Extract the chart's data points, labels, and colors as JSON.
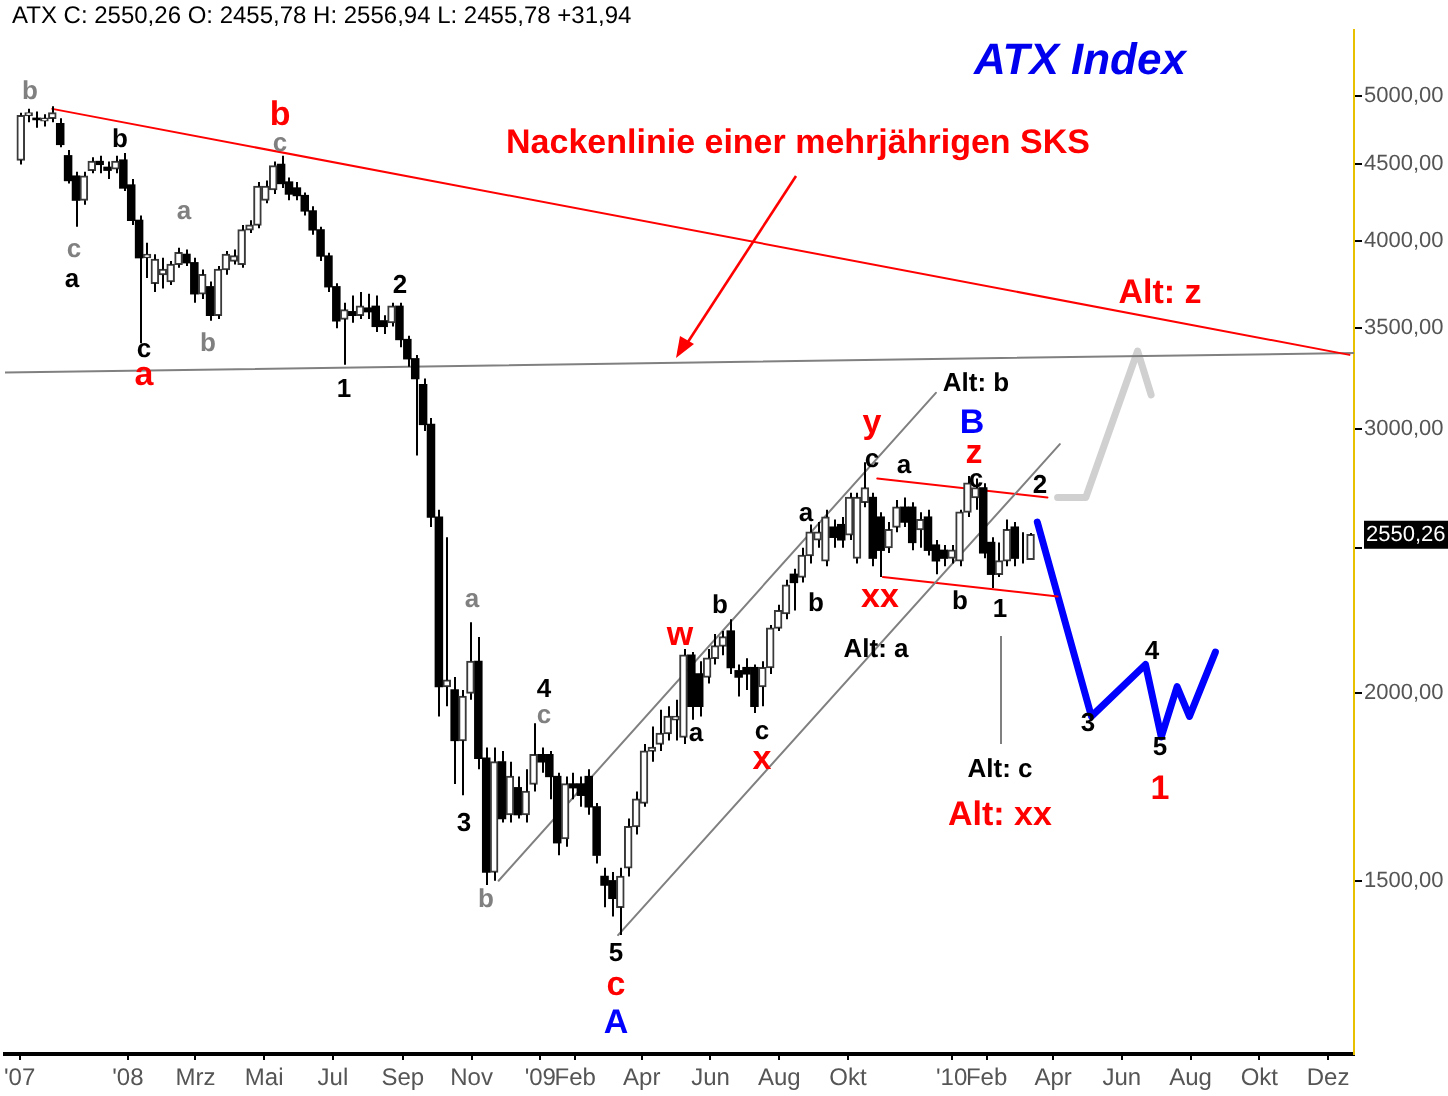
{
  "chart_data": {
    "type": "candlestick",
    "title": "ATX Index",
    "subtitle": "ATX C: 2550,26 O: 2455,78 H: 2556,94 L: 2455,78 +31,94",
    "x": [
      "2007-09-28",
      "2007-10-05",
      "2007-10-12",
      "2007-10-19",
      "2007-10-26",
      "2007-11-02",
      "2007-11-09",
      "2007-11-16",
      "2007-11-23",
      "2007-11-30",
      "2007-12-07",
      "2007-12-14",
      "2007-12-21",
      "2007-12-28",
      "2008-01-04",
      "2008-01-11",
      "2008-01-18",
      "2008-01-25",
      "2008-02-01",
      "2008-02-08",
      "2008-02-15",
      "2008-02-22",
      "2008-02-29",
      "2008-03-07",
      "2008-03-14",
      "2008-03-21",
      "2008-03-28",
      "2008-04-04",
      "2008-04-11",
      "2008-04-18",
      "2008-04-25",
      "2008-05-02",
      "2008-05-09",
      "2008-05-16",
      "2008-05-23",
      "2008-05-30",
      "2008-06-06",
      "2008-06-13",
      "2008-06-20",
      "2008-06-27",
      "2008-07-04",
      "2008-07-11",
      "2008-07-18",
      "2008-07-25",
      "2008-08-01",
      "2008-08-08",
      "2008-08-15",
      "2008-08-22",
      "2008-08-29",
      "2008-09-05",
      "2008-09-12",
      "2008-09-19",
      "2008-09-26",
      "2008-10-03",
      "2008-10-10",
      "2008-10-17",
      "2008-10-24",
      "2008-10-31",
      "2008-11-07",
      "2008-11-14",
      "2008-11-21",
      "2008-11-28",
      "2008-12-05",
      "2008-12-12",
      "2008-12-19",
      "2008-12-26",
      "2009-01-02",
      "2009-01-09",
      "2009-01-16",
      "2009-01-23",
      "2009-01-30",
      "2009-02-06",
      "2009-02-13",
      "2009-02-20",
      "2009-02-27",
      "2009-03-06",
      "2009-03-13",
      "2009-03-20",
      "2009-03-27",
      "2009-04-03",
      "2009-04-10",
      "2009-04-17",
      "2009-04-24",
      "2009-05-01",
      "2009-05-08",
      "2009-05-15",
      "2009-05-22",
      "2009-05-29",
      "2009-06-05",
      "2009-06-12",
      "2009-06-19",
      "2009-06-26",
      "2009-07-03",
      "2009-07-10",
      "2009-07-17",
      "2009-07-24",
      "2009-07-31",
      "2009-08-07",
      "2009-08-14",
      "2009-08-21",
      "2009-08-28",
      "2009-09-04",
      "2009-09-11",
      "2009-09-18",
      "2009-09-25",
      "2009-10-02",
      "2009-10-09",
      "2009-10-16",
      "2009-10-23",
      "2009-10-30",
      "2009-11-06",
      "2009-11-13",
      "2009-11-20",
      "2009-11-27",
      "2009-12-04",
      "2009-12-11",
      "2009-12-18",
      "2009-12-25",
      "2010-01-01",
      "2010-01-08",
      "2010-01-15",
      "2010-01-22",
      "2010-01-29",
      "2010-02-05",
      "2010-02-12",
      "2010-02-19",
      "2010-02-26",
      "2010-03-05",
      "2010-03-12"
    ],
    "ohlc": [
      [
        4530,
        4870,
        4500,
        4850
      ],
      [
        4850,
        4900,
        4800,
        4870
      ],
      [
        4830,
        4880,
        4760,
        4820
      ],
      [
        4810,
        4860,
        4770,
        4830
      ],
      [
        4830,
        4920,
        4800,
        4870
      ],
      [
        4790,
        4830,
        4620,
        4640
      ],
      [
        4560,
        4600,
        4370,
        4390
      ],
      [
        4420,
        4450,
        4090,
        4260
      ],
      [
        4260,
        4450,
        4230,
        4420
      ],
      [
        4460,
        4550,
        4440,
        4520
      ],
      [
        4520,
        4560,
        4440,
        4500
      ],
      [
        4480,
        4520,
        4400,
        4460
      ],
      [
        4470,
        4560,
        4440,
        4520
      ],
      [
        4530,
        4580,
        4320,
        4340
      ],
      [
        4360,
        4400,
        4100,
        4130
      ],
      [
        4130,
        4160,
        3420,
        3900
      ],
      [
        3900,
        3990,
        3780,
        3920
      ],
      [
        3750,
        3920,
        3700,
        3890
      ],
      [
        3800,
        3900,
        3720,
        3830
      ],
      [
        3760,
        3880,
        3740,
        3860
      ],
      [
        3860,
        3960,
        3840,
        3930
      ],
      [
        3920,
        3950,
        3850,
        3870
      ],
      [
        3870,
        3900,
        3640,
        3690
      ],
      [
        3690,
        3830,
        3660,
        3800
      ],
      [
        3730,
        3760,
        3540,
        3570
      ],
      [
        3570,
        3850,
        3550,
        3830
      ],
      [
        3830,
        3940,
        3800,
        3920
      ],
      [
        3880,
        3950,
        3860,
        3910
      ],
      [
        3860,
        4100,
        3840,
        4070
      ],
      [
        4070,
        4130,
        4050,
        4100
      ],
      [
        4100,
        4380,
        4080,
        4350
      ],
      [
        4260,
        4390,
        4240,
        4350
      ],
      [
        4330,
        4520,
        4300,
        4490
      ],
      [
        4500,
        4560,
        4340,
        4370
      ],
      [
        4380,
        4410,
        4260,
        4300
      ],
      [
        4340,
        4380,
        4260,
        4290
      ],
      [
        4290,
        4310,
        4160,
        4190
      ],
      [
        4190,
        4220,
        4040,
        4070
      ],
      [
        4070,
        4090,
        3880,
        3910
      ],
      [
        3910,
        3930,
        3700,
        3730
      ],
      [
        3730,
        3750,
        3500,
        3540
      ],
      [
        3550,
        3640,
        3310,
        3600
      ],
      [
        3590,
        3680,
        3530,
        3570
      ],
      [
        3570,
        3700,
        3550,
        3620
      ],
      [
        3610,
        3690,
        3550,
        3590
      ],
      [
        3620,
        3680,
        3480,
        3510
      ],
      [
        3540,
        3570,
        3470,
        3510
      ],
      [
        3530,
        3640,
        3510,
        3620
      ],
      [
        3620,
        3640,
        3400,
        3440
      ],
      [
        3440,
        3460,
        3300,
        3340
      ],
      [
        3340,
        3360,
        2880,
        3240
      ],
      [
        3210,
        3240,
        2990,
        3020
      ],
      [
        3020,
        3050,
        2580,
        2620
      ],
      [
        2620,
        2650,
        1930,
        2020
      ],
      [
        2020,
        2540,
        1960,
        2040
      ],
      [
        2010,
        2050,
        1740,
        1860
      ],
      [
        1860,
        2010,
        1710,
        1990
      ],
      [
        2000,
        2230,
        1980,
        2100
      ],
      [
        2100,
        2180,
        1780,
        1810
      ],
      [
        1810,
        1840,
        1490,
        1520
      ],
      [
        1520,
        1840,
        1500,
        1800
      ],
      [
        1800,
        1830,
        1640,
        1650
      ],
      [
        1660,
        1800,
        1640,
        1760
      ],
      [
        1730,
        1760,
        1650,
        1660
      ],
      [
        1660,
        1780,
        1640,
        1720
      ],
      [
        1740,
        1910,
        1720,
        1820
      ],
      [
        1820,
        1840,
        1770,
        1800
      ],
      [
        1820,
        1830,
        1700,
        1760
      ],
      [
        1760,
        1770,
        1560,
        1590
      ],
      [
        1600,
        1760,
        1580,
        1740
      ],
      [
        1740,
        1770,
        1700,
        1730
      ],
      [
        1740,
        1760,
        1680,
        1710
      ],
      [
        1760,
        1780,
        1660,
        1680
      ],
      [
        1680,
        1690,
        1540,
        1560
      ],
      [
        1510,
        1530,
        1440,
        1490
      ],
      [
        1500,
        1520,
        1420,
        1460
      ],
      [
        1440,
        1530,
        1380,
        1510
      ],
      [
        1530,
        1650,
        1510,
        1630
      ],
      [
        1630,
        1720,
        1610,
        1700
      ],
      [
        1690,
        1850,
        1680,
        1830
      ],
      [
        1830,
        1900,
        1800,
        1840
      ],
      [
        1850,
        1950,
        1830,
        1880
      ],
      [
        1880,
        1960,
        1860,
        1930
      ],
      [
        1920,
        1980,
        1860,
        1930
      ],
      [
        1870,
        2140,
        1850,
        2120
      ],
      [
        2120,
        2130,
        1920,
        1960
      ],
      [
        2060,
        2100,
        1930,
        1960
      ],
      [
        2050,
        2140,
        2030,
        2110
      ],
      [
        2110,
        2190,
        2090,
        2150
      ],
      [
        2150,
        2200,
        2120,
        2180
      ],
      [
        2200,
        2240,
        2060,
        2080
      ],
      [
        2070,
        2090,
        1990,
        2050
      ],
      [
        2080,
        2110,
        2010,
        2060
      ],
      [
        2080,
        2090,
        1940,
        1960
      ],
      [
        2020,
        2100,
        1960,
        2080
      ],
      [
        2080,
        2220,
        2060,
        2210
      ],
      [
        2210,
        2290,
        2200,
        2270
      ],
      [
        2260,
        2380,
        2240,
        2360
      ],
      [
        2400,
        2420,
        2270,
        2370
      ],
      [
        2390,
        2500,
        2370,
        2470
      ],
      [
        2470,
        2590,
        2440,
        2560
      ],
      [
        2530,
        2600,
        2500,
        2560
      ],
      [
        2450,
        2650,
        2430,
        2620
      ],
      [
        2580,
        2610,
        2500,
        2540
      ],
      [
        2590,
        2620,
        2500,
        2530
      ],
      [
        2550,
        2720,
        2530,
        2700
      ],
      [
        2460,
        2720,
        2440,
        2700
      ],
      [
        2680,
        2850,
        2660,
        2740
      ],
      [
        2700,
        2720,
        2430,
        2460
      ],
      [
        2620,
        2640,
        2390,
        2490
      ],
      [
        2500,
        2600,
        2480,
        2570
      ],
      [
        2580,
        2690,
        2560,
        2660
      ],
      [
        2660,
        2700,
        2580,
        2600
      ],
      [
        2660,
        2680,
        2490,
        2520
      ],
      [
        2570,
        2640,
        2500,
        2610
      ],
      [
        2620,
        2650,
        2470,
        2490
      ],
      [
        2510,
        2530,
        2400,
        2450
      ],
      [
        2490,
        2510,
        2430,
        2460
      ],
      [
        2460,
        2510,
        2440,
        2490
      ],
      [
        2450,
        2650,
        2430,
        2640
      ],
      [
        2640,
        2790,
        2620,
        2760
      ],
      [
        2700,
        2780,
        2650,
        2740
      ],
      [
        2740,
        2760,
        2460,
        2480
      ],
      [
        2520,
        2540,
        2350,
        2400
      ],
      [
        2400,
        2520,
        2390,
        2450
      ],
      [
        2450,
        2610,
        2430,
        2570
      ],
      [
        2580,
        2600,
        2430,
        2460
      ],
      [
        2470,
        2560,
        2440,
        2470
      ],
      [
        2455.78,
        2556.94,
        2455.78,
        2550.26
      ]
    ],
    "series": [
      {
        "type": "line",
        "color": "#ff0000",
        "x": [
          "2007-10-26",
          "2010-12-20"
        ],
        "values": [
          4900,
          3360
        ]
      },
      {
        "type": "line",
        "color": "#808080",
        "x": [
          "2007-09-14",
          "2010-12-24"
        ],
        "values": [
          3270,
          3370
        ]
      },
      {
        "type": "line",
        "color": "#808080",
        "x": [
          "2008-11-25",
          "2009-12-18"
        ],
        "values": [
          1500,
          3170
        ]
      },
      {
        "type": "line",
        "color": "#808080",
        "x": [
          "2009-03-11",
          "2010-04-07"
        ],
        "values": [
          1380,
          2930
        ]
      },
      {
        "type": "line",
        "color": "#ff0000",
        "x": [
          "2009-10-27",
          "2010-03-27"
        ],
        "values": [
          2780,
          2700
        ]
      },
      {
        "type": "line",
        "color": "#ff0000",
        "x": [
          "2009-11-01",
          "2010-04-05"
        ],
        "values": [
          2390,
          2320
        ]
      },
      {
        "type": "line",
        "color": "#0000ff",
        "x": [
          "2010-03-18",
          "2010-05-05",
          "2010-06-22",
          "2010-07-06",
          "2010-07-20",
          "2010-07-31",
          "2010-08-23"
        ],
        "values": [
          2600,
          1930,
          2090,
          1870,
          2020,
          1930,
          2130
        ]
      },
      {
        "type": "line",
        "color": "#d0d0d0",
        "x": [
          "2010-04-05",
          "2010-04-30",
          "2010-06-15",
          "2010-06-27"
        ],
        "values": [
          2700,
          2700,
          3380,
          3160
        ]
      }
    ],
    "log": true,
    "xlim": [
      "2007-09-14",
      "2010-12-24"
    ],
    "xticks": [
      {
        "value": "2007-09-27",
        "label": "'07"
      },
      {
        "value": "2008-01-01",
        "label": "'08"
      },
      {
        "value": "2008-03-01",
        "label": "Mrz"
      },
      {
        "value": "2008-05-01",
        "label": "Mai"
      },
      {
        "value": "2008-07-01",
        "label": "Jul"
      },
      {
        "value": "2008-09-01",
        "label": "Sep"
      },
      {
        "value": "2008-11-01",
        "label": "Nov"
      },
      {
        "value": "2009-01-01",
        "label": "'09"
      },
      {
        "value": "2009-02-01",
        "label": "Feb"
      },
      {
        "value": "2009-04-01",
        "label": "Apr"
      },
      {
        "value": "2009-06-01",
        "label": "Jun"
      },
      {
        "value": "2009-08-01",
        "label": "Aug"
      },
      {
        "value": "2009-10-01",
        "label": "Okt"
      },
      {
        "value": "2010-01-01",
        "label": "'10"
      },
      {
        "value": "2010-02-01",
        "label": "Feb"
      },
      {
        "value": "2010-04-01",
        "label": "Apr"
      },
      {
        "value": "2010-06-01",
        "label": "Jun"
      },
      {
        "value": "2010-08-01",
        "label": "Aug"
      },
      {
        "value": "2010-10-01",
        "label": "Okt"
      },
      {
        "value": "2010-12-01",
        "label": "Dez"
      }
    ],
    "ylim": [
      1150,
      5530
    ],
    "yticks": [
      {
        "value": 1500,
        "label": "1500,00"
      },
      {
        "value": 2000,
        "label": "2000,00"
      },
      {
        "value": 2500,
        "label": null
      },
      {
        "value": 3000,
        "label": "3000,00"
      },
      {
        "value": 3500,
        "label": "3500,00"
      },
      {
        "value": 4000,
        "label": "4000,00"
      },
      {
        "value": 4500,
        "label": "4500,00"
      },
      {
        "value": 5000,
        "label": "5000,00"
      }
    ],
    "annotations": [
      "2550,26",
      "Nackenlinie einer mehrjährigen SKS",
      "b",
      "b",
      "c",
      "a",
      "c",
      "a",
      "a",
      "b",
      "b",
      "c",
      "2",
      "1",
      "a",
      "3",
      "b",
      "4",
      "c",
      "5",
      "c",
      "A",
      "w",
      "b",
      "a",
      "c",
      "x",
      "b",
      "a",
      "c",
      "y",
      "a",
      "Alt: b",
      "B",
      "z",
      "c",
      "2",
      "xx",
      "b",
      "Alt: a",
      "1",
      "Alt: c",
      "Alt: xx",
      "Alt: z",
      "3",
      "4",
      "5",
      "1"
    ]
  }
}
